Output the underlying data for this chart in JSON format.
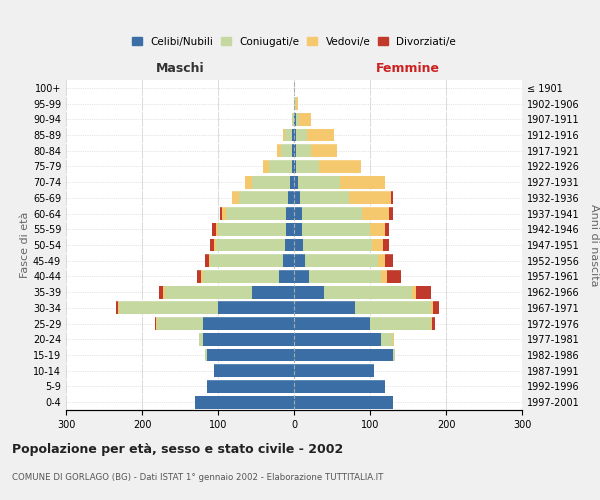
{
  "age_groups": [
    "0-4",
    "5-9",
    "10-14",
    "15-19",
    "20-24",
    "25-29",
    "30-34",
    "35-39",
    "40-44",
    "45-49",
    "50-54",
    "55-59",
    "60-64",
    "65-69",
    "70-74",
    "75-79",
    "80-84",
    "85-89",
    "90-94",
    "95-99",
    "100+"
  ],
  "birth_years": [
    "1997-2001",
    "1992-1996",
    "1987-1991",
    "1982-1986",
    "1977-1981",
    "1972-1976",
    "1967-1971",
    "1962-1966",
    "1957-1961",
    "1952-1956",
    "1947-1951",
    "1942-1946",
    "1937-1941",
    "1932-1936",
    "1927-1931",
    "1922-1926",
    "1917-1921",
    "1912-1916",
    "1907-1911",
    "1902-1906",
    "≤ 1901"
  ],
  "male": {
    "celibi": [
      130,
      115,
      105,
      115,
      120,
      120,
      100,
      55,
      20,
      15,
      12,
      10,
      10,
      8,
      5,
      3,
      2,
      2,
      0,
      0,
      0
    ],
    "coniugati": [
      0,
      0,
      0,
      2,
      5,
      60,
      130,
      115,
      100,
      95,
      90,
      90,
      80,
      65,
      50,
      30,
      15,
      10,
      2,
      0,
      0
    ],
    "vedovi": [
      0,
      0,
      0,
      0,
      0,
      1,
      1,
      2,
      2,
      2,
      3,
      3,
      5,
      8,
      10,
      8,
      5,
      2,
      0,
      0,
      0
    ],
    "divorziati": [
      0,
      0,
      0,
      0,
      0,
      2,
      3,
      5,
      5,
      5,
      5,
      5,
      2,
      0,
      0,
      0,
      0,
      0,
      0,
      0,
      0
    ]
  },
  "female": {
    "nubili": [
      130,
      120,
      105,
      130,
      115,
      100,
      80,
      40,
      20,
      15,
      12,
      10,
      10,
      8,
      5,
      3,
      2,
      2,
      2,
      0,
      0
    ],
    "coniugate": [
      0,
      0,
      0,
      3,
      15,
      80,
      100,
      115,
      95,
      95,
      90,
      90,
      80,
      65,
      55,
      30,
      20,
      15,
      5,
      2,
      0
    ],
    "vedove": [
      0,
      0,
      0,
      0,
      1,
      2,
      3,
      5,
      8,
      10,
      15,
      20,
      35,
      55,
      60,
      55,
      35,
      35,
      15,
      3,
      0
    ],
    "divorziate": [
      0,
      0,
      0,
      0,
      1,
      3,
      8,
      20,
      18,
      10,
      8,
      5,
      5,
      2,
      0,
      0,
      0,
      0,
      0,
      0,
      0
    ]
  },
  "colors": {
    "celibi": "#3a6ea5",
    "coniugati": "#c5d8a0",
    "vedovi": "#f5c86e",
    "divorziati": "#c0392b"
  },
  "xlim": 300,
  "title": "Popolazione per età, sesso e stato civile - 2002",
  "subtitle": "COMUNE DI GORLAGO (BG) - Dati ISTAT 1° gennaio 2002 - Elaborazione TUTTITALIA.IT",
  "ylabel_left": "Fasce di età",
  "ylabel_right": "Anni di nascita",
  "xlabel_left": "Maschi",
  "xlabel_right": "Femmine",
  "bg_color": "#f0f0f0",
  "plot_bg": "#ffffff",
  "legend_labels": [
    "Celibi/Nubili",
    "Coniugati/e",
    "Vedovi/e",
    "Divorziati/e"
  ]
}
